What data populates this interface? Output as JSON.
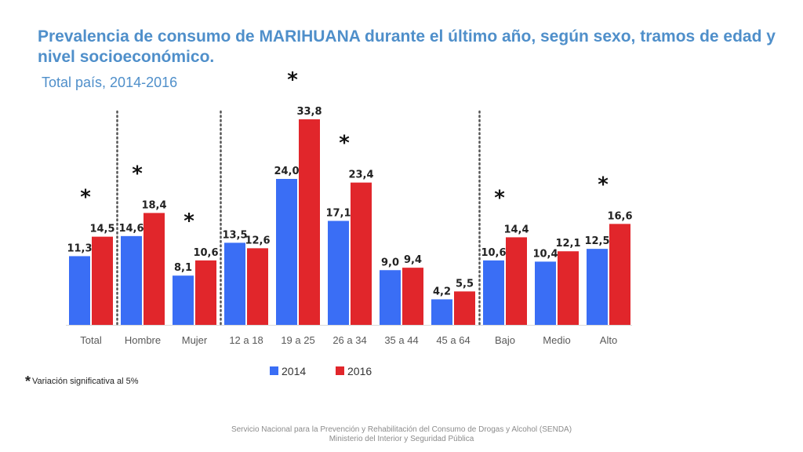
{
  "title": "Prevalencia de consumo de MARIHUANA durante el último año, según sexo, tramos de edad y nivel socioeconómico.",
  "subtitle": "Total país, 2014-2016",
  "footnote": {
    "star": "*",
    "text": "Variación significativa al 5%"
  },
  "footer": {
    "line1": "Servicio Nacional para la Prevención y Rehabilitación del Consumo de Drogas y Alcohol (SENDA)",
    "line2": "Ministerio del Interior y Seguridad Pública"
  },
  "colors": {
    "series_2014": "#3a6ef5",
    "series_2016": "#e1262b",
    "title": "#4f8fca"
  },
  "chart_data": {
    "type": "bar",
    "categories": [
      "Total",
      "Hombre",
      "Mujer",
      "12 a 18",
      "19 a 25",
      "26 a 34",
      "35 a 44",
      "45 a 64",
      "Bajo",
      "Medio",
      "Alto"
    ],
    "series": [
      {
        "name": "2014",
        "values": [
          11.3,
          14.6,
          8.1,
          13.5,
          24.0,
          17.1,
          9.0,
          4.2,
          10.6,
          10.4,
          12.5
        ],
        "labels": [
          "11,3",
          "14,6",
          "8,1",
          "13,5",
          "24,0",
          "17,1",
          "9,0",
          "4,2",
          "10,6",
          "10,4",
          "12,5"
        ]
      },
      {
        "name": "2016",
        "values": [
          14.5,
          18.4,
          10.6,
          12.6,
          33.8,
          23.4,
          9.4,
          5.5,
          14.4,
          12.1,
          16.6
        ],
        "labels": [
          "14,5",
          "18,4",
          "10,6",
          "12,6",
          "33,8",
          "23,4",
          "9,4",
          "5,5",
          "14,4",
          "12,1",
          "16,6"
        ]
      }
    ],
    "significant": [
      true,
      true,
      true,
      false,
      true,
      true,
      false,
      false,
      true,
      false,
      true
    ],
    "significance_marker": "*",
    "group_separators_after": [
      "Total",
      "Mujer",
      "45 a 64"
    ],
    "ylim": [
      0,
      40
    ],
    "xlabel": "",
    "ylabel": "",
    "legend": [
      "2014",
      "2016"
    ],
    "legend_position": "bottom",
    "grid": false
  }
}
